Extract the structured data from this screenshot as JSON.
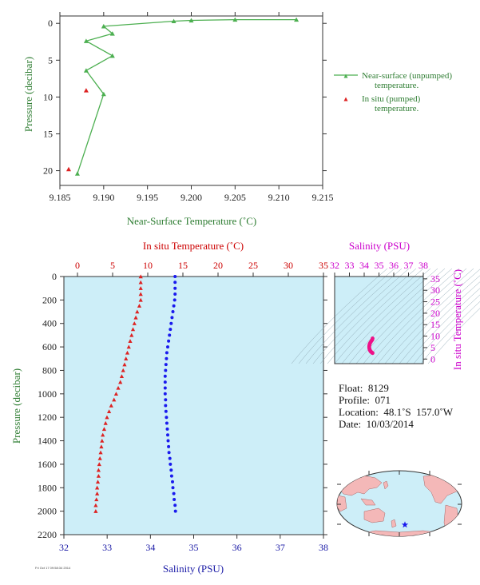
{
  "chart_data": [
    {
      "type": "line",
      "name_key": "near_surface",
      "xlabel": "Near-Surface Temperature (˚C)",
      "ylabel": "Pressure (decibar)",
      "xlim": [
        9.185,
        9.215
      ],
      "ylim": [
        22,
        -1
      ],
      "xticks": [
        "9.185",
        "9.190",
        "9.195",
        "9.200",
        "9.205",
        "9.210",
        "9.215"
      ],
      "yticks": [
        "0",
        "5",
        "10",
        "15",
        "20"
      ],
      "series": [
        {
          "name": "Near-surface (unpumped) temperature.",
          "color": "#4caf50",
          "points": [
            [
              9.212,
              -0.5
            ],
            [
              9.205,
              -0.5
            ],
            [
              9.2,
              -0.4
            ],
            [
              9.198,
              -0.3
            ],
            [
              9.19,
              0.4
            ],
            [
              9.191,
              1.4
            ],
            [
              9.188,
              2.4
            ],
            [
              9.191,
              4.4
            ],
            [
              9.188,
              6.4
            ],
            [
              9.19,
              9.6
            ],
            [
              9.187,
              20.4
            ]
          ]
        },
        {
          "name": "In situ (pumped) temperature.",
          "color": "#dd2222",
          "points": [
            [
              9.188,
              9.1
            ],
            [
              9.186,
              19.8
            ]
          ]
        }
      ]
    },
    {
      "type": "scatter",
      "name_key": "profile",
      "title": "In situ Temperature (˚C)",
      "xlabel": "Salinity (PSU)",
      "ylabel": "Pressure (decibar)",
      "temp_lim": [
        -3,
        35
      ],
      "temp_ticks": [
        "0",
        "5",
        "10",
        "15",
        "20",
        "25",
        "30",
        "35"
      ],
      "sal_lim": [
        32,
        38
      ],
      "sal_ticks": [
        "32",
        "33",
        "34",
        "35",
        "36",
        "37",
        "38"
      ],
      "ylim": [
        0,
        2200
      ],
      "yticks": [
        "0",
        "200",
        "400",
        "600",
        "800",
        "1000",
        "1200",
        "1400",
        "1600",
        "1800",
        "2000",
        "2200"
      ],
      "temperature": [
        [
          9.0,
          0
        ],
        [
          9.0,
          50
        ],
        [
          9.0,
          100
        ],
        [
          9.0,
          150
        ],
        [
          9.0,
          200
        ],
        [
          8.8,
          250
        ],
        [
          8.5,
          300
        ],
        [
          8.3,
          350
        ],
        [
          8.1,
          400
        ],
        [
          7.9,
          450
        ],
        [
          7.7,
          500
        ],
        [
          7.5,
          550
        ],
        [
          7.3,
          600
        ],
        [
          7.1,
          650
        ],
        [
          6.9,
          700
        ],
        [
          6.7,
          750
        ],
        [
          6.5,
          800
        ],
        [
          6.3,
          850
        ],
        [
          6.1,
          900
        ],
        [
          5.8,
          950
        ],
        [
          5.5,
          1000
        ],
        [
          5.2,
          1050
        ],
        [
          4.8,
          1100
        ],
        [
          4.5,
          1150
        ],
        [
          4.2,
          1200
        ],
        [
          4.0,
          1250
        ],
        [
          3.8,
          1300
        ],
        [
          3.6,
          1350
        ],
        [
          3.5,
          1400
        ],
        [
          3.4,
          1450
        ],
        [
          3.3,
          1500
        ],
        [
          3.2,
          1550
        ],
        [
          3.1,
          1600
        ],
        [
          3.0,
          1650
        ],
        [
          3.0,
          1700
        ],
        [
          2.9,
          1750
        ],
        [
          2.8,
          1800
        ],
        [
          2.8,
          1850
        ],
        [
          2.7,
          1900
        ],
        [
          2.6,
          1950
        ],
        [
          2.6,
          2000
        ]
      ],
      "salinity": [
        [
          34.57,
          0
        ],
        [
          34.57,
          50
        ],
        [
          34.57,
          100
        ],
        [
          34.57,
          150
        ],
        [
          34.56,
          200
        ],
        [
          34.54,
          250
        ],
        [
          34.52,
          300
        ],
        [
          34.5,
          350
        ],
        [
          34.48,
          400
        ],
        [
          34.46,
          450
        ],
        [
          34.44,
          500
        ],
        [
          34.42,
          550
        ],
        [
          34.4,
          600
        ],
        [
          34.38,
          650
        ],
        [
          34.37,
          700
        ],
        [
          34.36,
          750
        ],
        [
          34.35,
          800
        ],
        [
          34.34,
          850
        ],
        [
          34.34,
          900
        ],
        [
          34.34,
          950
        ],
        [
          34.34,
          1000
        ],
        [
          34.35,
          1050
        ],
        [
          34.35,
          1100
        ],
        [
          34.36,
          1150
        ],
        [
          34.37,
          1200
        ],
        [
          34.38,
          1250
        ],
        [
          34.39,
          1300
        ],
        [
          34.4,
          1350
        ],
        [
          34.41,
          1400
        ],
        [
          34.42,
          1450
        ],
        [
          34.43,
          1500
        ],
        [
          34.45,
          1550
        ],
        [
          34.46,
          1600
        ],
        [
          34.48,
          1650
        ],
        [
          34.49,
          1700
        ],
        [
          34.51,
          1750
        ],
        [
          34.52,
          1800
        ],
        [
          34.54,
          1850
        ],
        [
          34.55,
          1900
        ],
        [
          34.57,
          1950
        ],
        [
          34.58,
          2000
        ]
      ]
    },
    {
      "type": "scatter",
      "name_key": "ts",
      "title": "Salinity (PSU)",
      "ylabel": "In situ Temperature (˚C)",
      "sal_lim": [
        32,
        38
      ],
      "sal_ticks": [
        "32",
        "33",
        "34",
        "35",
        "36",
        "37",
        "38"
      ],
      "temp_lim": [
        -2,
        36
      ],
      "temp_ticks": [
        "0",
        "5",
        "10",
        "15",
        "20",
        "25",
        "30",
        "35"
      ],
      "points": [
        [
          34.57,
          9.0
        ],
        [
          34.55,
          8.5
        ],
        [
          34.5,
          8.0
        ],
        [
          34.45,
          7.5
        ],
        [
          34.4,
          7.0
        ],
        [
          34.37,
          6.5
        ],
        [
          34.35,
          6.0
        ],
        [
          34.34,
          5.5
        ],
        [
          34.34,
          5.0
        ],
        [
          34.35,
          4.6
        ],
        [
          34.37,
          4.2
        ],
        [
          34.39,
          3.8
        ],
        [
          34.42,
          3.5
        ],
        [
          34.45,
          3.2
        ],
        [
          34.49,
          3.0
        ],
        [
          34.53,
          2.8
        ],
        [
          34.57,
          2.6
        ]
      ]
    }
  ],
  "info": {
    "float": "Float:  8129",
    "profile": "Profile:  071",
    "location": "Location:  48.1˚S  157.0˚W",
    "date": "Date:  10/03/2014"
  },
  "footnote": "Fri Oct 17 09:58:34 2014",
  "colors": {
    "green": "#4caf50",
    "red": "#dd2222",
    "blue": "#1a1aee",
    "magenta": "#ee1188",
    "panel": "#cdeef8"
  }
}
